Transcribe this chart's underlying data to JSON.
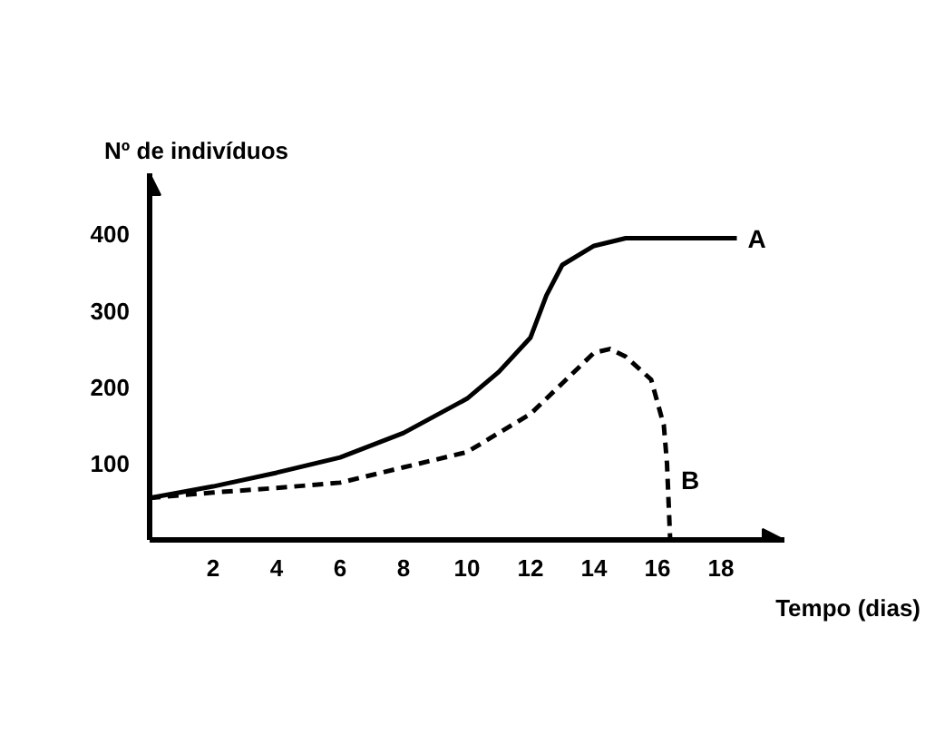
{
  "chart_data": {
    "type": "line",
    "xlabel": "Tempo (dias)",
    "ylabel": "Nº de indivíduos",
    "xlim": [
      0,
      20
    ],
    "ylim": [
      0,
      480
    ],
    "xticks": [
      2,
      4,
      6,
      8,
      10,
      12,
      14,
      16,
      18
    ],
    "yticks": [
      100,
      200,
      300,
      400
    ],
    "grid": false,
    "marker": "none",
    "series": [
      {
        "name": "A",
        "color": "#000000",
        "line_style": "solid",
        "x": [
          0,
          2,
          4,
          6,
          8,
          10,
          11,
          12,
          12.5,
          13,
          14,
          15,
          18.5
        ],
        "values": [
          55,
          70,
          88,
          108,
          140,
          185,
          220,
          265,
          320,
          360,
          385,
          395,
          395
        ]
      },
      {
        "name": "B",
        "color": "#000000",
        "line_style": "dashed",
        "x": [
          0,
          2,
          4,
          6,
          8,
          10,
          12,
          13,
          14,
          14.5,
          15,
          15.8,
          16.2,
          16.3,
          16.4
        ],
        "values": [
          55,
          62,
          68,
          75,
          95,
          115,
          165,
          205,
          245,
          250,
          240,
          210,
          150,
          100,
          0
        ]
      }
    ]
  }
}
